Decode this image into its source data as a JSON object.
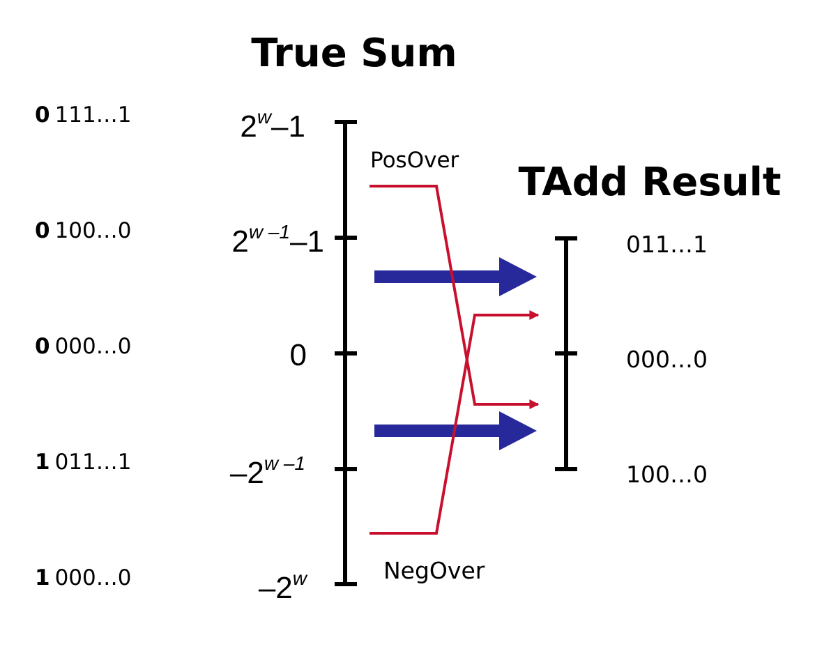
{
  "titles": {
    "true_sum": "True Sum",
    "tadd_result": "TAdd Result"
  },
  "bit_patterns": [
    {
      "sign": "0",
      "rest": "111…1"
    },
    {
      "sign": "0",
      "rest": "100…0"
    },
    {
      "sign": "0",
      "rest": "000…0"
    },
    {
      "sign": "1",
      "rest": "011…1"
    },
    {
      "sign": "1",
      "rest": "000…0"
    }
  ],
  "true_sum_ticks": {
    "max": {
      "base": "2",
      "exp": "w",
      "tail": "–1"
    },
    "half_max": {
      "base": "2",
      "exp": "w –1",
      "tail": "–1"
    },
    "zero": {
      "text": "0"
    },
    "half_min": {
      "prefix": "–2",
      "exp": "w –1"
    },
    "min": {
      "prefix": "–2",
      "exp": "w"
    }
  },
  "overflow_labels": {
    "positive": "PosOver",
    "negative": "NegOver"
  },
  "result_ticks": [
    "011…1",
    "000…0",
    "100…0"
  ],
  "colors": {
    "axis": "#000000",
    "overflow_line": "#c8102e",
    "normal_arrow": "#27289a"
  }
}
